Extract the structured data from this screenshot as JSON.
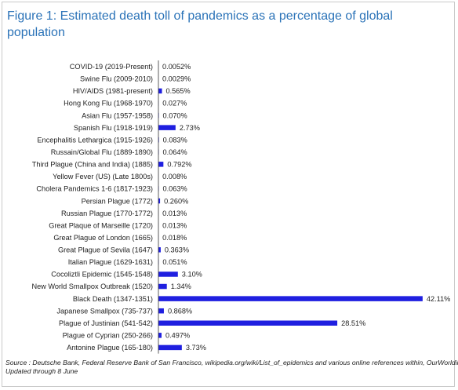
{
  "title": "Figure 1: Estimated death toll of pandemics as a percentage of global population",
  "footer": {
    "source": "Source : Deutsche Bank, Federal Reserve Bank of San Francisco, wikipedia.org/wiki/List_of_epidemics and various online references within, OurWorldinData",
    "updated": "Updated through 8 June"
  },
  "chart_data": {
    "type": "bar",
    "orientation": "horizontal",
    "title": "Figure 1: Estimated death toll of pandemics as a percentage of global population",
    "bar_color": "#1f1fe0",
    "xlim": [
      0,
      45
    ],
    "x_ticks": [
      0,
      5,
      10,
      15,
      20,
      25,
      30,
      35,
      40,
      45
    ],
    "x_tick_labels": [
      "0%",
      "5%",
      "10%",
      "15%",
      "20%",
      "25%",
      "30%",
      "35%",
      "40%",
      "45%"
    ],
    "categories": [
      "COVID-19 (2019-Present)",
      "Swine Flu (2009-2010)",
      "HIV/AIDS (1981-present)",
      "Hong Kong Flu (1968-1970)",
      "Asian Flu (1957-1958)",
      "Spanish Flu (1918-1919)",
      "Encephalitis Lethargica  (1915-1926)",
      "Russain/Global Flu  (1889-1890)",
      "Third Plague (China and India) (1885)",
      "Yellow Fever (US) (Late 1800s)",
      "Cholera Pandemics 1-6 (1817-1923)",
      "Persian Plague (1772)",
      "Russian Plague (1770-1772)",
      "Great Plaque of Marseille (1720)",
      "Great Plague of London (1665)",
      "Great Plague of Sevila (1647)",
      "Italian Plague (1629-1631)",
      "Cocoliztli Epidemic (1545-1548)",
      "New World Smallpox Outbreak (1520)",
      "Black Death (1347-1351)",
      "Japanese Smallpox (735-737)",
      "Plague of Justinian (541-542)",
      "Plague of Cyprian (250-266)",
      "Antonine Plague (165-180)"
    ],
    "values": [
      0.0052,
      0.0029,
      0.565,
      0.027,
      0.07,
      2.73,
      0.083,
      0.064,
      0.792,
      0.008,
      0.063,
      0.26,
      0.013,
      0.013,
      0.018,
      0.363,
      0.051,
      3.1,
      1.34,
      42.11,
      0.868,
      28.51,
      0.497,
      3.73
    ],
    "value_labels": [
      "0.0052%",
      "0.0029%",
      "0.565%",
      "0.027%",
      "0.070%",
      "2.73%",
      "0.083%",
      "0.064%",
      "0.792%",
      "0.008%",
      "0.063%",
      "0.260%",
      "0.013%",
      "0.013%",
      "0.018%",
      "0.363%",
      "0.051%",
      "3.10%",
      "1.34%",
      "42.11%",
      "0.868%",
      "28.51%",
      "0.497%",
      "3.73%"
    ],
    "grid": false,
    "legend": "none"
  }
}
